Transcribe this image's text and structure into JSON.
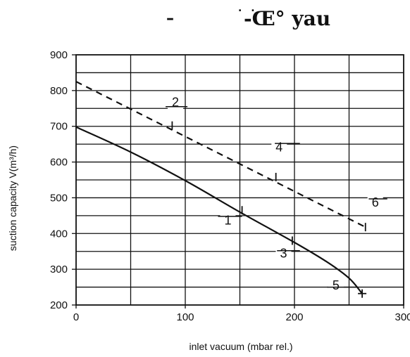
{
  "header": {
    "dash": "–",
    "dots": ". .",
    "glyphs": "-Œ° yau"
  },
  "chart_data": {
    "type": "line",
    "xlabel": "inlet vacuum (mbar rel.)",
    "ylabel": "suction capacity V(m³/h)",
    "xlim": [
      0,
      300
    ],
    "ylim": [
      200,
      900
    ],
    "x_ticks": [
      0,
      100,
      200,
      300
    ],
    "y_ticks": [
      200,
      300,
      400,
      500,
      600,
      700,
      800,
      900
    ],
    "x_tick_labels": [
      "0",
      "100",
      "200",
      "300"
    ],
    "y_tick_labels": [
      "200",
      "300",
      "400",
      "500",
      "600",
      "700",
      "800",
      "900"
    ],
    "grid": true,
    "series": [
      {
        "style": "solid",
        "points": [
          [
            0,
            698
          ],
          [
            50,
            628
          ],
          [
            100,
            548
          ],
          [
            150,
            460
          ],
          [
            200,
            375
          ],
          [
            230,
            320
          ],
          [
            250,
            275
          ],
          [
            262,
            232
          ]
        ]
      },
      {
        "style": "dashed",
        "points": [
          [
            0,
            825
          ],
          [
            265,
            418
          ]
        ]
      }
    ],
    "markers": [
      {
        "x": 88,
        "y": 702
      },
      {
        "x": 183,
        "y": 558
      },
      {
        "x": 265,
        "y": 418
      },
      {
        "x": 152,
        "y": 465
      },
      {
        "x": 198,
        "y": 380
      },
      {
        "x": 262,
        "y": 232
      }
    ],
    "annotations": [
      {
        "text": "2",
        "x": 91,
        "y": 755,
        "leader": [
          [
            82,
            755
          ],
          [
            102,
            755
          ]
        ]
      },
      {
        "text": "4",
        "x": 186,
        "y": 630,
        "leader": [
          [
            182,
            652
          ],
          [
            205,
            652
          ]
        ]
      },
      {
        "text": "6",
        "x": 274,
        "y": 475,
        "leader": [
          [
            268,
            497
          ],
          [
            285,
            497
          ]
        ]
      },
      {
        "text": "1",
        "x": 139,
        "y": 425,
        "leader": [
          [
            130,
            448
          ],
          [
            152,
            448
          ]
        ]
      },
      {
        "text": "3",
        "x": 190,
        "y": 333,
        "leader": [
          [
            184,
            352
          ],
          [
            205,
            352
          ]
        ]
      },
      {
        "text": "5",
        "x": 238,
        "y": 243,
        "leader": [
          [
            230,
            250
          ],
          [
            258,
            250
          ]
        ]
      }
    ]
  }
}
